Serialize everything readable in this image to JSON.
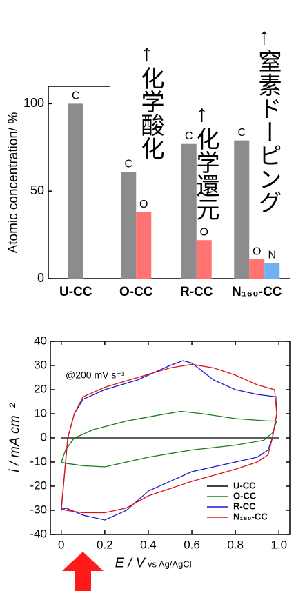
{
  "chart_data": [
    {
      "type": "bar",
      "y_label": "Atomic concentration/ %",
      "categories": [
        "U-CC",
        "O-CC",
        "R-CC",
        "N₁₆₀-CC"
      ],
      "series": [
        {
          "name": "C",
          "color": "#8c8c8c",
          "values": [
            100,
            61,
            77,
            79
          ]
        },
        {
          "name": "O",
          "color": "#ff7373",
          "values": [
            null,
            38,
            22,
            11
          ]
        },
        {
          "name": "N",
          "color": "#6fb2f2",
          "values": [
            null,
            null,
            null,
            9
          ]
        }
      ],
      "ylim": [
        0,
        110
      ],
      "yticks": [
        0,
        50,
        100
      ],
      "annotations": [
        {
          "text": "←化学酸化",
          "color": "#22b022"
        },
        {
          "text": "←化学還元",
          "color": "#1a1acc"
        },
        {
          "text": "←窒素ドーピング",
          "color": "#ee1111"
        }
      ]
    },
    {
      "type": "line",
      "y_label": "i / mA cm⁻²",
      "x_label": "E / V",
      "x_label_note": "vs Ag/AgCl",
      "annotation": "@200 mV s⁻¹",
      "xlim": [
        -0.05,
        1.05
      ],
      "xticks": [
        0,
        0.2,
        0.4,
        0.6,
        0.8,
        {
          "value": 1,
          "label": "1.0"
        }
      ],
      "ylim": [
        -40,
        40
      ],
      "yticks": [
        -40,
        -30,
        -20,
        -10,
        0,
        10,
        20,
        30,
        40
      ],
      "legend": "lower right",
      "series": [
        {
          "name": "U-CC",
          "color": "#000000",
          "x": [
            0,
            1
          ],
          "values": [
            0,
            0
          ]
        },
        {
          "name": "O-CC",
          "color": "#1a7a1a",
          "x": [
            0,
            0.02,
            0.06,
            0.15,
            0.3,
            0.45,
            0.55,
            0.65,
            0.8,
            0.95,
            0.99,
            0.97,
            0.93,
            0.8,
            0.6,
            0.4,
            0.2,
            0.1,
            0.02,
            0
          ],
          "values": [
            -10,
            -5,
            0,
            3.5,
            7,
            9.5,
            11,
            10,
            8,
            7,
            7,
            2,
            -1,
            -3,
            -5,
            -8,
            -12,
            -11.5,
            -10.5,
            -10
          ]
        },
        {
          "name": "R-CC",
          "color": "#1a1acc",
          "x": [
            0,
            0.01,
            0.03,
            0.06,
            0.1,
            0.2,
            0.35,
            0.5,
            0.56,
            0.6,
            0.7,
            0.8,
            0.9,
            0.99,
            0.99,
            0.97,
            0.95,
            0.9,
            0.8,
            0.6,
            0.4,
            0.3,
            0.2,
            0.1,
            0.02,
            0
          ],
          "values": [
            -30,
            -20,
            0,
            10,
            16,
            20,
            24,
            30,
            32,
            31,
            24,
            20,
            18,
            17,
            10,
            0,
            -5,
            -8,
            -10,
            -14,
            -22,
            -30,
            -34,
            -32,
            -29,
            -30
          ]
        },
        {
          "name": "N₁₆₀-CC",
          "color": "#dd1111",
          "x": [
            0,
            0.01,
            0.03,
            0.06,
            0.1,
            0.2,
            0.35,
            0.5,
            0.6,
            0.7,
            0.8,
            0.9,
            0.98,
            0.99,
            0.97,
            0.95,
            0.9,
            0.8,
            0.6,
            0.4,
            0.3,
            0.2,
            0.1,
            0.02,
            0
          ],
          "values": [
            -29,
            -20,
            0,
            10,
            17,
            21,
            25,
            29,
            30.5,
            29,
            26,
            22,
            20,
            10,
            0,
            -7,
            -10,
            -13,
            -18,
            -24,
            -29,
            -31,
            -31,
            -30,
            -29
          ]
        }
      ]
    }
  ]
}
